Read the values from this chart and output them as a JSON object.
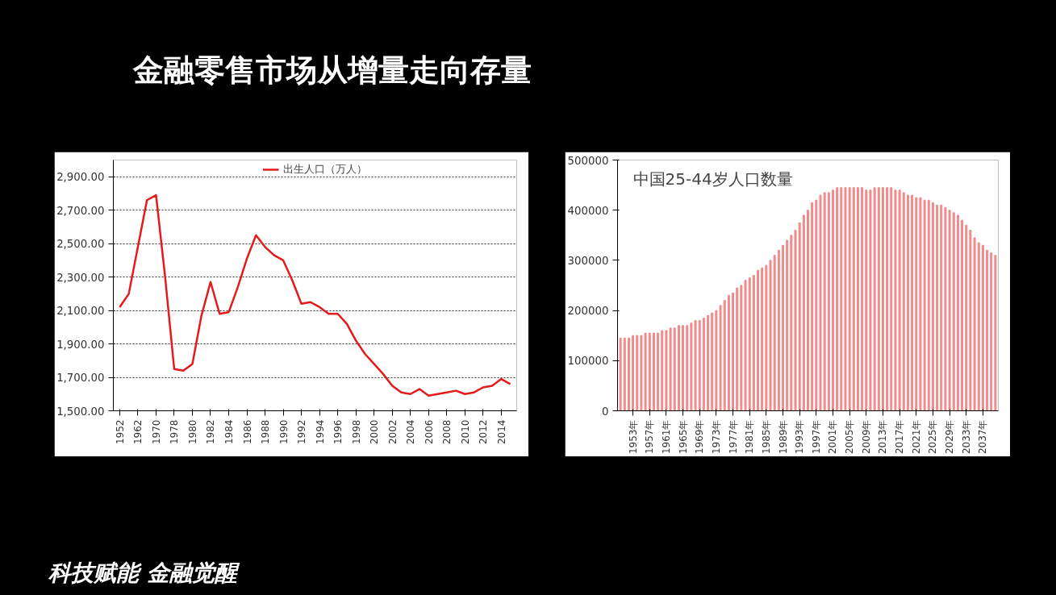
{
  "chart_data": [
    {
      "type": "line",
      "title": "金融零售市场从增量走向存量",
      "annotations": [
        "科技赋能 金融觉醒"
      ],
      "categories": [
        "1952",
        null,
        "1962",
        null,
        "1970",
        null,
        "1978",
        null,
        "1980",
        null,
        "1982",
        null,
        "1984",
        null,
        "1986",
        null,
        "1988",
        null,
        "1990",
        null,
        "1992",
        null,
        "1994",
        null,
        "1996",
        null,
        "1998",
        null,
        "2000",
        null,
        "2002",
        null,
        "2004",
        null,
        "2006",
        null,
        "2008",
        null,
        "2010",
        null,
        "2012",
        null,
        "2014",
        null
      ],
      "series": [
        {
          "name": "出生人口（万人）",
          "color": "#e41a1c",
          "values": [
            2120,
            2200,
            2480,
            2760,
            2790,
            2300,
            1750,
            1740,
            1780,
            2070,
            2270,
            2080,
            2090,
            2240,
            2410,
            2550,
            2480,
            2430,
            2400,
            2280,
            2140,
            2150,
            2120,
            2080,
            2080,
            2020,
            1920,
            1840,
            1780,
            1720,
            1650,
            1610,
            1600,
            1630,
            1590,
            1600,
            1610,
            1620,
            1600,
            1610,
            1640,
            1650,
            1690,
            1660
          ]
        }
      ],
      "ylim": [
        1500,
        3000
      ],
      "yticks": [
        {
          "value": 1500,
          "label": "1,500.00"
        },
        {
          "value": 1700,
          "label": "1,700.00"
        },
        {
          "value": 1900,
          "label": "1,900.00"
        },
        {
          "value": 2100,
          "label": "2,100.00"
        },
        {
          "value": 2300,
          "label": "2,300.00"
        },
        {
          "value": 2500,
          "label": "2,500.00"
        },
        {
          "value": 2700,
          "label": "2,700.00"
        },
        {
          "value": 2900,
          "label": "2,900.00"
        }
      ],
      "grid": "y",
      "legend": "top",
      "marker": "none",
      "line_style": "solid"
    },
    {
      "type": "bar",
      "title": "中国25-44岁人口数量",
      "categories": [
        null,
        null,
        null,
        "1953年",
        null,
        null,
        null,
        "1957年",
        null,
        null,
        null,
        "1961年",
        null,
        null,
        null,
        "1965年",
        null,
        null,
        null,
        "1969年",
        null,
        null,
        null,
        "1973年",
        null,
        null,
        null,
        "1977年",
        null,
        null,
        null,
        "1981年",
        null,
        null,
        null,
        "1985年",
        null,
        null,
        null,
        "1989年",
        null,
        null,
        null,
        "1993年",
        null,
        null,
        null,
        "1997年",
        null,
        null,
        null,
        "2001年",
        null,
        null,
        null,
        "2005年",
        null,
        null,
        null,
        "2009年",
        null,
        null,
        null,
        "2013年",
        null,
        null,
        null,
        "2017年",
        null,
        null,
        null,
        "2021年",
        null,
        null,
        null,
        "2025年",
        null,
        null,
        null,
        "2029年",
        null,
        null,
        null,
        "2033年",
        null,
        null,
        null,
        "2037年",
        null,
        null,
        null
      ],
      "color": "#f08a8a",
      "values": [
        145000,
        145000,
        145000,
        150000,
        150000,
        150000,
        155000,
        155000,
        155000,
        155000,
        160000,
        160000,
        165000,
        165000,
        170000,
        170000,
        170000,
        175000,
        180000,
        180000,
        185000,
        190000,
        195000,
        200000,
        210000,
        220000,
        230000,
        235000,
        245000,
        250000,
        260000,
        265000,
        270000,
        280000,
        285000,
        290000,
        300000,
        310000,
        320000,
        330000,
        340000,
        350000,
        360000,
        375000,
        390000,
        400000,
        415000,
        420000,
        430000,
        435000,
        435000,
        440000,
        445000,
        445000,
        445000,
        445000,
        445000,
        445000,
        445000,
        440000,
        440000,
        445000,
        445000,
        445000,
        445000,
        445000,
        440000,
        440000,
        435000,
        430000,
        430000,
        425000,
        425000,
        420000,
        420000,
        415000,
        410000,
        410000,
        405000,
        400000,
        395000,
        390000,
        380000,
        370000,
        360000,
        345000,
        335000,
        330000,
        320000,
        315000,
        310000
      ],
      "ylim": [
        0,
        500000
      ],
      "yticks": [
        0,
        100000,
        200000,
        300000,
        400000,
        500000
      ],
      "grid": false,
      "legend": false
    }
  ]
}
